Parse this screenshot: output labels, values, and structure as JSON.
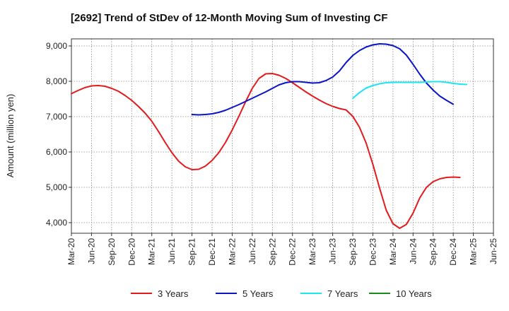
{
  "chart_data": {
    "type": "line",
    "title": "[2692]  Trend of StDev of 12-Month Moving Sum of Investing CF",
    "xlabel": "",
    "ylabel": "Amount (million yen)",
    "ylim": [
      3700,
      9200
    ],
    "yticks": [
      4000,
      5000,
      6000,
      7000,
      8000,
      9000
    ],
    "ytick_labels": [
      "4,000",
      "5,000",
      "6,000",
      "7,000",
      "8,000",
      "9,000"
    ],
    "grid": true,
    "legend_position": "bottom",
    "x_start": "Mar-20",
    "x_end": "Jun-25",
    "xtick_labels": [
      "Mar-20",
      "Jun-20",
      "Sep-20",
      "Dec-20",
      "Mar-21",
      "Jun-21",
      "Sep-21",
      "Dec-21",
      "Mar-22",
      "Jun-22",
      "Sep-22",
      "Dec-22",
      "Mar-23",
      "Jun-23",
      "Sep-23",
      "Dec-23",
      "Mar-24",
      "Jun-24",
      "Sep-24",
      "Dec-24",
      "Mar-25",
      "Jun-25"
    ],
    "series": [
      {
        "name": "3 Years",
        "color": "#e31a1c",
        "start_index": 0,
        "values": [
          7650,
          7740,
          7820,
          7870,
          7880,
          7860,
          7800,
          7720,
          7600,
          7460,
          7290,
          7100,
          6870,
          6580,
          6270,
          5980,
          5740,
          5580,
          5500,
          5510,
          5600,
          5760,
          5980,
          6270,
          6620,
          7010,
          7420,
          7800,
          8080,
          8210,
          8220,
          8170,
          8080,
          7960,
          7830,
          7700,
          7580,
          7470,
          7370,
          7290,
          7230,
          7190,
          7010,
          6700,
          6250,
          5650,
          4980,
          4350,
          3970,
          3840,
          3950,
          4270,
          4700,
          5000,
          5160,
          5240,
          5280,
          5290,
          5280
        ]
      },
      {
        "name": "5 Years",
        "color": "#0a14c8",
        "start_index": 18,
        "values": [
          7060,
          7050,
          7060,
          7080,
          7120,
          7180,
          7260,
          7340,
          7430,
          7520,
          7610,
          7700,
          7800,
          7900,
          7960,
          7990,
          7990,
          7970,
          7950,
          7960,
          8020,
          8120,
          8290,
          8530,
          8730,
          8870,
          8970,
          9030,
          9060,
          9050,
          9010,
          8920,
          8740,
          8480,
          8200,
          7950,
          7750,
          7580,
          7460,
          7350
        ]
      },
      {
        "name": "7 Years",
        "color": "#19e6f0",
        "start_index": 42,
        "values": [
          7520,
          7680,
          7810,
          7880,
          7930,
          7960,
          7970,
          7970,
          7970,
          7970,
          7970,
          7980,
          7990,
          7990,
          7970,
          7940,
          7920,
          7910
        ]
      },
      {
        "name": "10 Years",
        "color": "#1a8a1a",
        "start_index": 0,
        "values": []
      }
    ]
  }
}
